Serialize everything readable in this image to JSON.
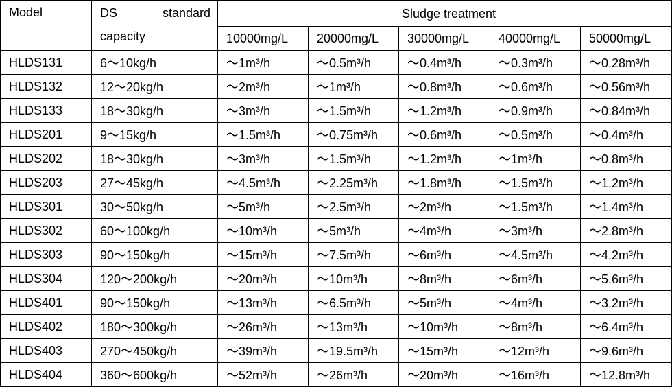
{
  "header": {
    "model": "Model",
    "capacity": "DS standard capacity",
    "group": "Sludge treatment",
    "concentrations": [
      "10000mg/L",
      "20000mg/L",
      "30000mg/L",
      "40000mg/L",
      "50000mg/L"
    ]
  },
  "table": {
    "rows": [
      [
        "HLDS131",
        "6～10kg/h",
        "～1m³/h",
        "～0.5m³/h",
        "～0.4m³/h",
        "～0.3m³/h",
        "～0.28m³/h"
      ],
      [
        "HLDS132",
        "12～20kg/h",
        "～2m³/h",
        "～1m³/h",
        "～0.8m³/h",
        "～0.6m³/h",
        "～0.56m³/h"
      ],
      [
        "HLDS133",
        "18～30kg/h",
        "～3m³/h",
        "～1.5m³/h",
        "～1.2m³/h",
        "～0.9m³/h",
        "～0.84m³/h"
      ],
      [
        "HLDS201",
        "9～15kg/h",
        "～1.5m³/h",
        "～0.75m³/h",
        "～0.6m³/h",
        "～0.5m³/h",
        "～0.4m³/h"
      ],
      [
        "HLDS202",
        "18～30kg/h",
        "～3m³/h",
        "～1.5m³/h",
        "～1.2m³/h",
        "～1m³/h",
        "～0.8m³/h"
      ],
      [
        "HLDS203",
        "27～45kg/h",
        "～4.5m³/h",
        "～2.25m³/h",
        "～1.8m³/h",
        "～1.5m³/h",
        "～1.2m³/h"
      ],
      [
        "HLDS301",
        "30～50kg/h",
        "～5m³/h",
        "～2.5m³/h",
        "～2m³/h",
        "～1.5m³/h",
        "～1.4m³/h"
      ],
      [
        "HLDS302",
        "60～100kg/h",
        "～10m³/h",
        "～5m³/h",
        "～4m³/h",
        "～3m³/h",
        "～2.8m³/h"
      ],
      [
        "HLDS303",
        "90～150kg/h",
        "～15m³/h",
        "～7.5m³/h",
        "～6m³/h",
        "～4.5m³/h",
        "～4.2m³/h"
      ],
      [
        "HLDS304",
        "120～200kg/h",
        "～20m³/h",
        "～10m³/h",
        "～8m³/h",
        "～6m³/h",
        "～5.6m³/h"
      ],
      [
        "HLDS401",
        "90～150kg/h",
        "～13m³/h",
        "～6.5m³/h",
        "～5m³/h",
        "～4m³/h",
        "～3.2m³/h"
      ],
      [
        "HLDS402",
        "180～300kg/h",
        "～26m³/h",
        "～13m³/h",
        "～10m³/h",
        "～8m³/h",
        "～6.4m³/h"
      ],
      [
        "HLDS403",
        "270～450kg/h",
        "～39m³/h",
        "～19.5m³/h",
        "～15m³/h",
        "～12m³/h",
        "～9.6m³/h"
      ],
      [
        "HLDS404",
        "360～600kg/h",
        "～52m³/h",
        "～26m³/h",
        "～20m³/h",
        "～16m³/h",
        "～12.8m³/h"
      ]
    ]
  }
}
